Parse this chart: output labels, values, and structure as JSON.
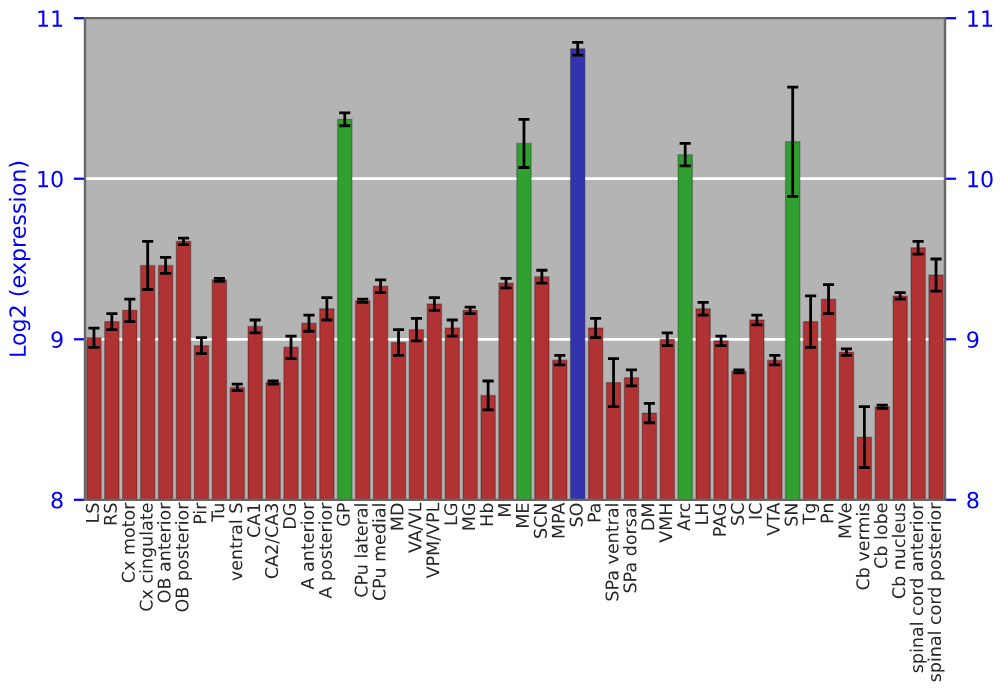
{
  "chart_data": {
    "type": "bar",
    "ylabel": "Log2 (expression)",
    "categories": [
      "LS",
      "RS",
      "Cx motor",
      "Cx cingulate",
      "OB anterior",
      "OB posterior",
      "Pir",
      "Tu",
      "ventral S",
      "CA1",
      "CA2/CA3",
      "DG",
      "A anterior",
      "A posterior",
      "GP",
      "CPu lateral",
      "CPu medial",
      "MD",
      "VA/VL",
      "VPM/VPL",
      "LG",
      "MG",
      "Hb",
      "M",
      "ME",
      "SCN",
      "MPA",
      "SO",
      "Pa",
      "SPa ventral",
      "SPa dorsal",
      "DM",
      "VMH",
      "Arc",
      "LH",
      "PAG",
      "SC",
      "IC",
      "VTA",
      "SN",
      "Tg",
      "Pn",
      "MVe",
      "Cb vermis",
      "Cb lobe",
      "Cb nucleus",
      "spinal cord anterior",
      "spinal cord posterior"
    ],
    "values": [
      9.01,
      9.11,
      9.18,
      9.46,
      9.46,
      9.61,
      8.96,
      9.37,
      8.7,
      9.08,
      8.73,
      8.95,
      9.1,
      9.19,
      10.37,
      9.24,
      9.33,
      8.98,
      9.06,
      9.22,
      9.07,
      9.18,
      8.65,
      9.35,
      10.22,
      9.39,
      8.87,
      10.81,
      9.07,
      8.73,
      8.76,
      8.54,
      9.0,
      10.15,
      9.19,
      8.99,
      8.8,
      9.12,
      8.87,
      10.23,
      9.11,
      9.25,
      8.92,
      8.39,
      8.58,
      9.27,
      9.57,
      9.4
    ],
    "errors": [
      0.06,
      0.05,
      0.07,
      0.15,
      0.05,
      0.02,
      0.05,
      0.01,
      0.02,
      0.04,
      0.01,
      0.07,
      0.05,
      0.07,
      0.04,
      0.01,
      0.04,
      0.08,
      0.07,
      0.04,
      0.05,
      0.02,
      0.09,
      0.03,
      0.15,
      0.04,
      0.03,
      0.04,
      0.06,
      0.15,
      0.05,
      0.06,
      0.04,
      0.07,
      0.04,
      0.03,
      0.01,
      0.03,
      0.03,
      0.34,
      0.16,
      0.09,
      0.02,
      0.19,
      0.01,
      0.02,
      0.04,
      0.1
    ],
    "colors": [
      "#b03232",
      "#b03232",
      "#b03232",
      "#b03232",
      "#b03232",
      "#b03232",
      "#b03232",
      "#b03232",
      "#b03232",
      "#b03232",
      "#b03232",
      "#b03232",
      "#b03232",
      "#b03232",
      "#30a030",
      "#b03232",
      "#b03232",
      "#b03232",
      "#b03232",
      "#b03232",
      "#b03232",
      "#b03232",
      "#b03232",
      "#b03232",
      "#30a030",
      "#b03232",
      "#b03232",
      "#3333b0",
      "#b03232",
      "#b03232",
      "#b03232",
      "#b03232",
      "#b03232",
      "#30a030",
      "#b03232",
      "#b03232",
      "#b03232",
      "#b03232",
      "#b03232",
      "#30a030",
      "#b03232",
      "#b03232",
      "#b03232",
      "#b03232",
      "#b03232",
      "#b03232",
      "#b03232",
      "#b03232"
    ],
    "ylim": [
      8,
      11
    ],
    "yticks": [
      8,
      9,
      10,
      11
    ],
    "y2lim": [
      8,
      11
    ],
    "y2ticks": [
      8,
      9,
      10,
      11
    ],
    "grid": "y",
    "legend": false
  }
}
